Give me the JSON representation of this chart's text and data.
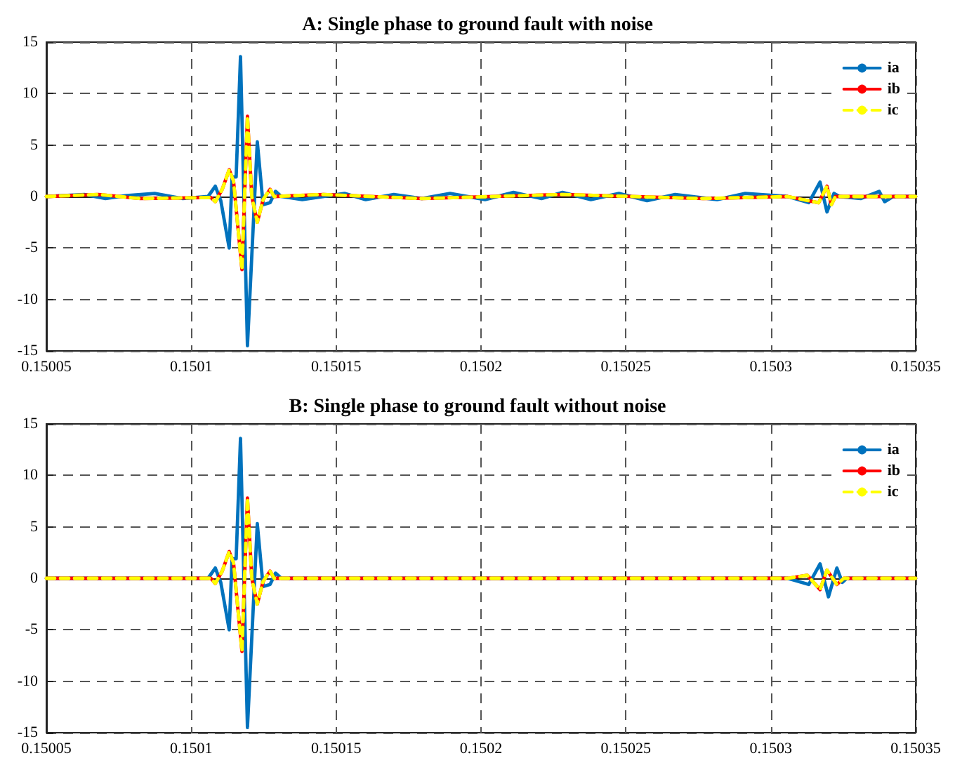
{
  "chart_data": [
    {
      "type": "line",
      "title": "A: Single phase to ground fault with noise",
      "xlim": [
        0.15005,
        0.15035
      ],
      "xticks": [
        0.15005,
        0.1501,
        0.15015,
        0.1502,
        0.15025,
        0.1503,
        0.15035
      ],
      "ylim": [
        -15,
        15
      ],
      "yticks": [
        -15,
        -10,
        -5,
        0,
        5,
        10,
        15
      ],
      "grid": true,
      "legend": "top right",
      "marker": "none",
      "series": [
        {
          "name": "ia",
          "color": "#0072bd",
          "line_style": "solid",
          "x": [
            0.15005,
            0.1500631,
            0.1500704,
            0.1500777,
            0.1500874,
            0.1500971,
            0.1501058,
            0.1501083,
            0.1501102,
            0.1501131,
            0.1501141,
            0.1501155,
            0.150117,
            0.1501194,
            0.1501228,
            0.1501248,
            0.1501272,
            0.1501291,
            0.1501311,
            0.1501383,
            0.1501529,
            0.1501602,
            0.1501699,
            0.1501796,
            0.1501893,
            0.1502014,
            0.1502112,
            0.1502209,
            0.1502281,
            0.1502379,
            0.1502476,
            0.1502573,
            0.150267,
            0.1502815,
            0.1502912,
            0.1503058,
            0.1503131,
            0.150317,
            0.1503194,
            0.1503218,
            0.1503238,
            0.150331,
            0.1503374,
            0.1503393,
            0.1503422,
            0.15035
          ],
          "values": [
            0,
            0.2,
            -0.2,
            0.1,
            0.3,
            -0.2,
            0,
            1.0,
            -0.4,
            -5,
            1.9,
            1.9,
            13.6,
            -14.5,
            5.3,
            -0.8,
            -0.6,
            0.5,
            0,
            -0.3,
            0.3,
            -0.3,
            0.2,
            -0.2,
            0.3,
            -0.3,
            0.4,
            -0.2,
            0.4,
            -0.3,
            0.3,
            -0.4,
            0.2,
            -0.3,
            0.3,
            0,
            -0.6,
            1.4,
            -1.5,
            0.3,
            0,
            -0.2,
            0.5,
            -0.5,
            0,
            0
          ]
        },
        {
          "name": "ib",
          "color": "#ff0000",
          "line_style": "solid",
          "x": [
            0.15005,
            0.150068,
            0.1500825,
            0.1501068,
            0.1501083,
            0.1501107,
            0.1501131,
            0.1501146,
            0.1501175,
            0.1501194,
            0.1501209,
            0.1501228,
            0.1501248,
            0.1501272,
            0.1501286,
            0.1501456,
            0.1501796,
            0.1502281,
            0.1502767,
            0.1503058,
            0.1503165,
            0.1503194,
            0.1503209,
            0.1503223,
            0.15035
          ],
          "values": [
            0,
            0.2,
            -0.2,
            -0.1,
            -0.5,
            0.7,
            2.6,
            1.5,
            -7.1,
            7.8,
            0,
            -2.5,
            -0.3,
            0.7,
            0,
            0.2,
            -0.2,
            0.2,
            -0.2,
            0,
            -0.6,
            1.0,
            -0.8,
            0,
            0
          ]
        },
        {
          "name": "ic",
          "color": "#ffff00",
          "line_style": "dashed",
          "x": [
            0.15005,
            0.150068,
            0.1500825,
            0.1501068,
            0.1501083,
            0.1501107,
            0.1501131,
            0.1501146,
            0.1501175,
            0.1501194,
            0.1501209,
            0.1501228,
            0.1501248,
            0.1501272,
            0.1501286,
            0.1501456,
            0.1501796,
            0.1502281,
            0.1502767,
            0.1503058,
            0.1503165,
            0.1503194,
            0.1503209,
            0.1503223,
            0.15035
          ],
          "values": [
            0,
            0.2,
            -0.2,
            -0.1,
            -0.5,
            0.7,
            2.6,
            1.5,
            -7.1,
            7.8,
            0,
            -2.5,
            -0.3,
            0.7,
            0,
            0.2,
            -0.2,
            0.2,
            -0.2,
            0,
            -0.6,
            1.0,
            -0.8,
            0,
            0
          ]
        }
      ]
    },
    {
      "type": "line",
      "title": "B: Single phase to ground fault without noise",
      "xlim": [
        0.15005,
        0.15035
      ],
      "xticks": [
        0.15005,
        0.1501,
        0.15015,
        0.1502,
        0.15025,
        0.1503,
        0.15035
      ],
      "ylim": [
        -15,
        15
      ],
      "yticks": [
        -15,
        -10,
        -5,
        0,
        5,
        10,
        15
      ],
      "grid": true,
      "legend": "top right",
      "marker": "none",
      "series": [
        {
          "name": "ia",
          "color": "#0072bd",
          "line_style": "solid",
          "x": [
            0.15005,
            0.1501058,
            0.1501083,
            0.1501102,
            0.1501131,
            0.1501141,
            0.1501155,
            0.150117,
            0.1501194,
            0.1501228,
            0.1501248,
            0.1501272,
            0.1501291,
            0.1501311,
            0.1503058,
            0.1503131,
            0.150317,
            0.1503199,
            0.1503228,
            0.1503247,
            0.1503262,
            0.15035
          ],
          "values": [
            0,
            0,
            1.0,
            -0.4,
            -5,
            1.9,
            1.9,
            13.6,
            -14.5,
            5.3,
            -0.8,
            -0.6,
            0.5,
            0,
            0,
            -0.6,
            1.4,
            -1.8,
            1.0,
            -0.4,
            0,
            0
          ]
        },
        {
          "name": "ib",
          "color": "#ff0000",
          "line_style": "solid",
          "x": [
            0.15005,
            0.1501068,
            0.1501083,
            0.1501107,
            0.1501131,
            0.1501146,
            0.1501175,
            0.1501194,
            0.1501209,
            0.1501228,
            0.1501248,
            0.1501272,
            0.1501286,
            0.1503058,
            0.1503126,
            0.150317,
            0.1503194,
            0.1503228,
            0.1503252,
            0.15035
          ],
          "values": [
            0,
            0,
            -0.5,
            0.7,
            2.6,
            1.5,
            -7.1,
            7.8,
            0,
            -2.5,
            -0.3,
            0.7,
            0,
            0,
            0.3,
            -1.1,
            0.8,
            -0.6,
            0,
            0
          ]
        },
        {
          "name": "ic",
          "color": "#ffff00",
          "line_style": "dashed",
          "x": [
            0.15005,
            0.1501068,
            0.1501083,
            0.1501107,
            0.1501131,
            0.1501146,
            0.1501175,
            0.1501194,
            0.1501209,
            0.1501228,
            0.1501248,
            0.1501272,
            0.1501286,
            0.1503058,
            0.1503126,
            0.150317,
            0.1503194,
            0.1503228,
            0.1503252,
            0.15035
          ],
          "values": [
            0,
            0,
            -0.5,
            0.7,
            2.6,
            1.5,
            -7.1,
            7.8,
            0,
            -2.5,
            -0.3,
            0.7,
            0,
            0,
            0.3,
            -1.1,
            0.8,
            -0.6,
            0,
            0
          ]
        }
      ]
    }
  ]
}
